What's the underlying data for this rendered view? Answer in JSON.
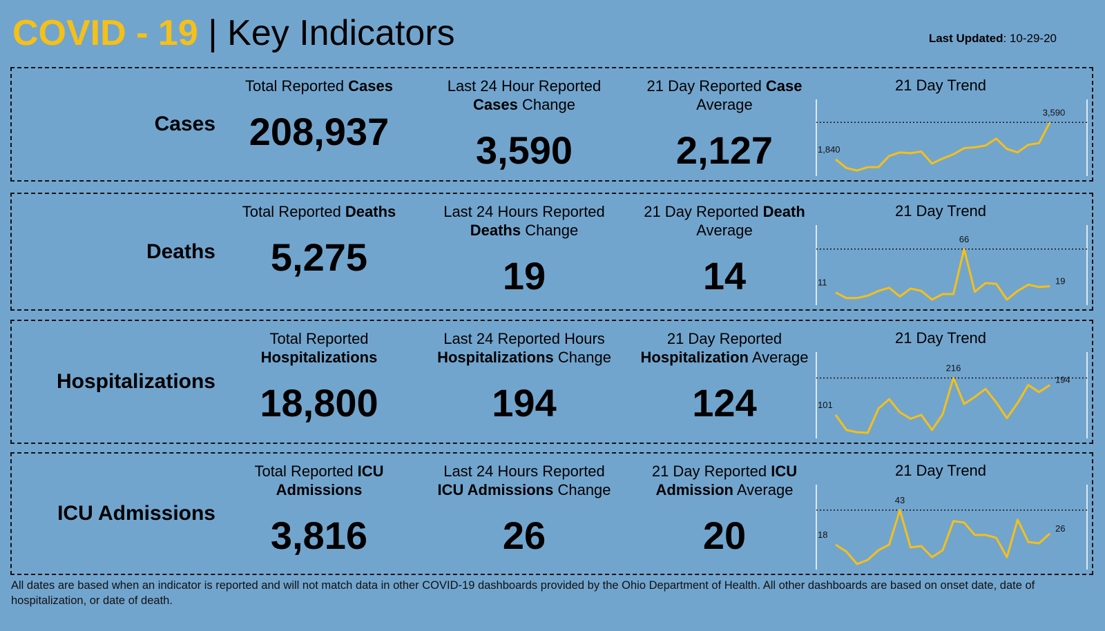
{
  "header": {
    "title_highlight": "COVID - 19",
    "title_separator": "|",
    "title": "Key Indicators",
    "updated_label": "Last Updated",
    "updated_value": ": 10-29-20"
  },
  "panels": [
    {
      "name": "Cases",
      "stats": [
        {
          "label_lines": [
            [
              {
                "t": "Total Reported "
              },
              {
                "t": "Cases",
                "b": true
              }
            ]
          ],
          "value": "208,937"
        },
        {
          "label_lines": [
            [
              {
                "t": "Last 24 Hour Reported"
              }
            ],
            [
              {
                "t": "Cases",
                "b": true
              },
              {
                "t": " Change"
              }
            ]
          ],
          "value": "3,590"
        },
        {
          "label_lines": [
            [
              {
                "t": "21 Day Reported "
              },
              {
                "t": "Case",
                "b": true
              }
            ],
            [
              {
                "t": "Average"
              }
            ]
          ],
          "value": "2,127"
        }
      ],
      "trend": {
        "title": "21 Day Trend",
        "color": "#f5c018",
        "values": [
          1840,
          1430,
          1310,
          1470,
          1470,
          2000,
          2170,
          2130,
          2210,
          1640,
          1880,
          2080,
          2370,
          2410,
          2490,
          2820,
          2330,
          2170,
          2530,
          2610,
          3590
        ],
        "value_labels": [
          "1,840",
          null,
          null,
          null,
          null,
          null,
          null,
          null,
          null,
          null,
          null,
          null,
          null,
          null,
          null,
          null,
          null,
          null,
          null,
          null,
          "3,590"
        ]
      }
    },
    {
      "name": "Deaths",
      "stats": [
        {
          "label_lines": [
            [
              {
                "t": "Total Reported "
              },
              {
                "t": "Deaths",
                "b": true
              }
            ]
          ],
          "value": "5,275"
        },
        {
          "label_lines": [
            [
              {
                "t": "Last 24 Hours Reported"
              }
            ],
            [
              {
                "t": "Deaths",
                "b": true
              },
              {
                "t": " Change"
              }
            ]
          ],
          "value": "19"
        },
        {
          "label_lines": [
            [
              {
                "t": "21 Day Reported "
              },
              {
                "t": "Death",
                "b": true
              }
            ],
            [
              {
                "t": "Average"
              }
            ]
          ],
          "value": "14"
        }
      ],
      "trend": {
        "title": "21 Day Trend",
        "color": "#f5c018",
        "values": [
          11,
          4,
          4,
          7,
          13,
          17,
          6,
          16,
          13,
          2,
          9,
          9,
          66,
          12,
          23,
          22,
          2,
          13,
          21,
          18,
          19
        ],
        "value_labels": [
          "11",
          null,
          null,
          null,
          null,
          null,
          null,
          null,
          null,
          null,
          null,
          null,
          "66",
          null,
          null,
          null,
          null,
          null,
          null,
          null,
          "19"
        ]
      }
    },
    {
      "name": "Hospitalizations",
      "stats": [
        {
          "label_lines": [
            [
              {
                "t": "Total Reported"
              }
            ],
            [
              {
                "t": "Hospitalizations",
                "b": true
              }
            ]
          ],
          "value": "18,800"
        },
        {
          "label_lines": [
            [
              {
                "t": "Last 24 Reported Hours"
              }
            ],
            [
              {
                "t": "Hospitalizations",
                "b": true
              },
              {
                "t": " Change"
              }
            ]
          ],
          "value": "194"
        },
        {
          "label_lines": [
            [
              {
                "t": "21 Day Reported"
              }
            ],
            [
              {
                "t": "Hospitalization",
                "b": true
              },
              {
                "t": " Average"
              }
            ]
          ],
          "value": "124"
        }
      ],
      "trend": {
        "title": "21 Day Trend",
        "color": "#f5c018",
        "values": [
          101,
          54,
          47,
          45,
          121,
          150,
          109,
          89,
          101,
          54,
          103,
          216,
          135,
          157,
          182,
          140,
          91,
          138,
          194,
          172,
          194
        ],
        "value_labels": [
          "101",
          null,
          null,
          null,
          null,
          null,
          null,
          null,
          null,
          null,
          null,
          "216",
          null,
          null,
          null,
          null,
          null,
          null,
          null,
          null,
          "194"
        ]
      }
    },
    {
      "name": "ICU Admissions",
      "stats": [
        {
          "label_lines": [
            [
              {
                "t": "Total Reported "
              },
              {
                "t": "ICU",
                "b": true
              }
            ],
            [
              {
                "t": "Admissions",
                "b": true
              }
            ]
          ],
          "value": "3,816"
        },
        {
          "label_lines": [
            [
              {
                "t": "Last 24 Hours Reported"
              }
            ],
            [
              {
                "t": "ICU Admissions",
                "b": true
              },
              {
                "t": " Change"
              }
            ]
          ],
          "value": "26"
        },
        {
          "label_lines": [
            [
              {
                "t": "21 Day Reported "
              },
              {
                "t": "ICU",
                "b": true
              }
            ],
            [
              {
                "t": "Admission",
                "b": true
              },
              {
                "t": " Average"
              }
            ]
          ],
          "value": "20"
        }
      ],
      "trend": {
        "title": "21 Day Trend",
        "color": "#f5c018",
        "values": [
          18,
          13,
          4,
          7,
          14,
          18,
          43,
          16,
          17,
          9,
          14,
          35,
          34,
          25,
          25,
          23,
          9,
          36,
          20,
          19,
          26
        ],
        "value_labels": [
          "18",
          null,
          null,
          null,
          null,
          null,
          43,
          null,
          null,
          null,
          null,
          null,
          null,
          null,
          null,
          null,
          null,
          null,
          null,
          null,
          "26"
        ]
      }
    }
  ],
  "footer": "All dates are based when an indicator is reported and will not match data in other COVID-19 dashboards provided by the Ohio Department of Health. All other dashboards are based on onset date, date of hospitalization, or date of death."
}
